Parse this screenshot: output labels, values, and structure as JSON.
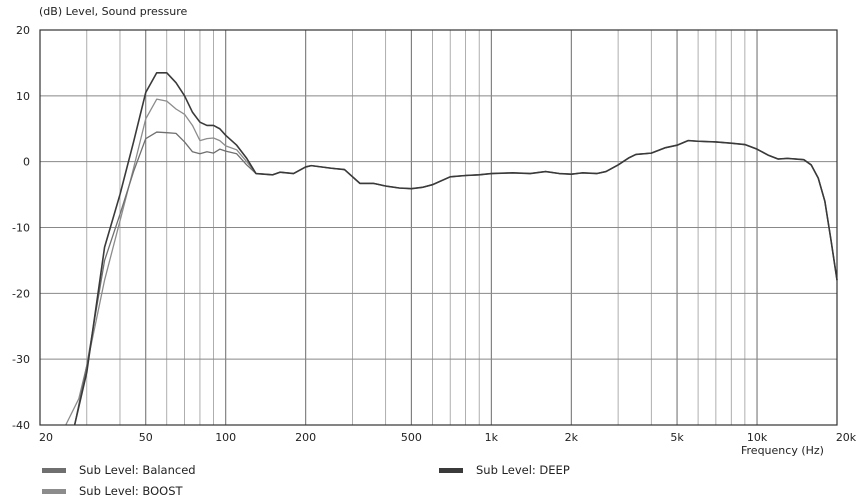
{
  "chart_data": {
    "type": "line",
    "title": "(dB)  Level, Sound pressure",
    "xlabel": "Frequency  (Hz)",
    "ylabel": "",
    "x_scale": "log",
    "xlim": [
      20,
      20000
    ],
    "ylim": [
      -40,
      20
    ],
    "grid": true,
    "x_ticks": [
      {
        "value": 20,
        "label": "20"
      },
      {
        "value": 50,
        "label": "50"
      },
      {
        "value": 100,
        "label": "100"
      },
      {
        "value": 200,
        "label": "200"
      },
      {
        "value": 500,
        "label": "500"
      },
      {
        "value": 1000,
        "label": "1k"
      },
      {
        "value": 2000,
        "label": "2k"
      },
      {
        "value": 5000,
        "label": "5k"
      },
      {
        "value": 10000,
        "label": "10k"
      },
      {
        "value": 20000,
        "label": "20k"
      }
    ],
    "y_ticks": [
      {
        "value": 20,
        "label": "20"
      },
      {
        "value": 10,
        "label": "10"
      },
      {
        "value": 0,
        "label": "0"
      },
      {
        "value": -10,
        "label": "-10"
      },
      {
        "value": -20,
        "label": "-20"
      },
      {
        "value": -30,
        "label": "-30"
      },
      {
        "value": -40,
        "label": "-40"
      }
    ],
    "series": [
      {
        "name": "Sub Level: Balanced",
        "color": "#6f6f6f",
        "points": [
          [
            27,
            -40
          ],
          [
            30,
            -31
          ],
          [
            35,
            -15
          ],
          [
            40,
            -8
          ],
          [
            45,
            -1.5
          ],
          [
            50,
            3.5
          ],
          [
            55,
            4.5
          ],
          [
            60,
            4.4
          ],
          [
            65,
            4.3
          ],
          [
            70,
            3.0
          ],
          [
            75,
            1.5
          ],
          [
            80,
            1.2
          ],
          [
            85,
            1.5
          ],
          [
            90,
            1.3
          ],
          [
            95,
            1.9
          ],
          [
            100,
            1.6
          ],
          [
            110,
            1.2
          ],
          [
            120,
            -0.5
          ],
          [
            130,
            -1.8
          ],
          [
            150,
            -2.0
          ],
          [
            160,
            -1.6
          ],
          [
            180,
            -1.8
          ],
          [
            200,
            -0.8
          ],
          [
            210,
            -0.6
          ],
          [
            250,
            -1.0
          ],
          [
            280,
            -1.2
          ],
          [
            320,
            -3.3
          ],
          [
            360,
            -3.3
          ],
          [
            400,
            -3.7
          ],
          [
            450,
            -4.0
          ],
          [
            500,
            -4.1
          ],
          [
            550,
            -3.9
          ],
          [
            600,
            -3.5
          ],
          [
            700,
            -2.3
          ],
          [
            800,
            -2.1
          ],
          [
            900,
            -2.0
          ],
          [
            1000,
            -1.8
          ],
          [
            1200,
            -1.7
          ],
          [
            1400,
            -1.8
          ],
          [
            1600,
            -1.5
          ],
          [
            1800,
            -1.8
          ],
          [
            2000,
            -1.9
          ],
          [
            2200,
            -1.7
          ],
          [
            2500,
            -1.8
          ],
          [
            2700,
            -1.5
          ],
          [
            3000,
            -0.5
          ],
          [
            3300,
            0.6
          ],
          [
            3500,
            1.1
          ],
          [
            4000,
            1.3
          ],
          [
            4500,
            2.1
          ],
          [
            5000,
            2.5
          ],
          [
            5500,
            3.2
          ],
          [
            6000,
            3.1
          ],
          [
            7000,
            3.0
          ],
          [
            8000,
            2.8
          ],
          [
            9000,
            2.6
          ],
          [
            10000,
            1.9
          ],
          [
            11000,
            1.0
          ],
          [
            12000,
            0.4
          ],
          [
            13000,
            0.5
          ],
          [
            14000,
            0.4
          ],
          [
            15000,
            0.3
          ],
          [
            16000,
            -0.5
          ],
          [
            17000,
            -2.5
          ],
          [
            18000,
            -6
          ],
          [
            19000,
            -12
          ],
          [
            20000,
            -18
          ]
        ]
      },
      {
        "name": "Sub Level: BOOST",
        "color": "#8c8c8c",
        "points": [
          [
            25,
            -40
          ],
          [
            28,
            -36
          ],
          [
            30,
            -31
          ],
          [
            35,
            -18
          ],
          [
            40,
            -9
          ],
          [
            45,
            -1
          ],
          [
            50,
            6.5
          ],
          [
            55,
            9.5
          ],
          [
            60,
            9.2
          ],
          [
            65,
            8.0
          ],
          [
            70,
            7.2
          ],
          [
            75,
            5.5
          ],
          [
            80,
            3.2
          ],
          [
            85,
            3.5
          ],
          [
            90,
            3.6
          ],
          [
            95,
            3.2
          ],
          [
            100,
            2.4
          ],
          [
            110,
            1.8
          ],
          [
            120,
            0.0
          ],
          [
            130,
            -1.8
          ],
          [
            150,
            -2.0
          ],
          [
            160,
            -1.6
          ],
          [
            180,
            -1.8
          ],
          [
            200,
            -0.8
          ],
          [
            210,
            -0.6
          ],
          [
            250,
            -1.0
          ],
          [
            280,
            -1.2
          ],
          [
            320,
            -3.3
          ],
          [
            360,
            -3.3
          ],
          [
            400,
            -3.7
          ],
          [
            450,
            -4.0
          ],
          [
            500,
            -4.1
          ],
          [
            550,
            -3.9
          ],
          [
            600,
            -3.5
          ],
          [
            700,
            -2.3
          ],
          [
            800,
            -2.1
          ],
          [
            900,
            -2.0
          ],
          [
            1000,
            -1.8
          ],
          [
            1200,
            -1.7
          ],
          [
            1400,
            -1.8
          ],
          [
            1600,
            -1.5
          ],
          [
            1800,
            -1.8
          ],
          [
            2000,
            -1.9
          ],
          [
            2200,
            -1.7
          ],
          [
            2500,
            -1.8
          ],
          [
            2700,
            -1.5
          ],
          [
            3000,
            -0.5
          ],
          [
            3300,
            0.6
          ],
          [
            3500,
            1.1
          ],
          [
            4000,
            1.3
          ],
          [
            4500,
            2.1
          ],
          [
            5000,
            2.5
          ],
          [
            5500,
            3.2
          ],
          [
            6000,
            3.1
          ],
          [
            7000,
            3.0
          ],
          [
            8000,
            2.8
          ],
          [
            9000,
            2.6
          ],
          [
            10000,
            1.9
          ],
          [
            11000,
            1.0
          ],
          [
            12000,
            0.4
          ],
          [
            13000,
            0.5
          ],
          [
            14000,
            0.4
          ],
          [
            15000,
            0.3
          ],
          [
            16000,
            -0.5
          ],
          [
            17000,
            -2.5
          ],
          [
            18000,
            -6
          ],
          [
            19000,
            -12
          ],
          [
            20000,
            -18
          ]
        ]
      },
      {
        "name": "Sub Level: DEEP",
        "color": "#3a3a3a",
        "points": [
          [
            27,
            -40
          ],
          [
            30,
            -32
          ],
          [
            35,
            -13
          ],
          [
            40,
            -5
          ],
          [
            45,
            3
          ],
          [
            50,
            10.5
          ],
          [
            55,
            13.5
          ],
          [
            60,
            13.5
          ],
          [
            65,
            12.0
          ],
          [
            70,
            10.0
          ],
          [
            75,
            7.5
          ],
          [
            80,
            6.0
          ],
          [
            85,
            5.5
          ],
          [
            90,
            5.5
          ],
          [
            95,
            5.0
          ],
          [
            100,
            4.0
          ],
          [
            110,
            2.5
          ],
          [
            120,
            0.5
          ],
          [
            130,
            -1.8
          ],
          [
            150,
            -2.0
          ],
          [
            160,
            -1.6
          ],
          [
            180,
            -1.8
          ],
          [
            200,
            -0.8
          ],
          [
            210,
            -0.6
          ],
          [
            250,
            -1.0
          ],
          [
            280,
            -1.2
          ],
          [
            320,
            -3.3
          ],
          [
            360,
            -3.3
          ],
          [
            400,
            -3.7
          ],
          [
            450,
            -4.0
          ],
          [
            500,
            -4.1
          ],
          [
            550,
            -3.9
          ],
          [
            600,
            -3.5
          ],
          [
            700,
            -2.3
          ],
          [
            800,
            -2.1
          ],
          [
            900,
            -2.0
          ],
          [
            1000,
            -1.8
          ],
          [
            1200,
            -1.7
          ],
          [
            1400,
            -1.8
          ],
          [
            1600,
            -1.5
          ],
          [
            1800,
            -1.8
          ],
          [
            2000,
            -1.9
          ],
          [
            2200,
            -1.7
          ],
          [
            2500,
            -1.8
          ],
          [
            2700,
            -1.5
          ],
          [
            3000,
            -0.5
          ],
          [
            3300,
            0.6
          ],
          [
            3500,
            1.1
          ],
          [
            4000,
            1.3
          ],
          [
            4500,
            2.1
          ],
          [
            5000,
            2.5
          ],
          [
            5500,
            3.2
          ],
          [
            6000,
            3.1
          ],
          [
            7000,
            3.0
          ],
          [
            8000,
            2.8
          ],
          [
            9000,
            2.6
          ],
          [
            10000,
            1.9
          ],
          [
            11000,
            1.0
          ],
          [
            12000,
            0.4
          ],
          [
            13000,
            0.5
          ],
          [
            14000,
            0.4
          ],
          [
            15000,
            0.3
          ],
          [
            16000,
            -0.5
          ],
          [
            17000,
            -2.5
          ],
          [
            18000,
            -6
          ],
          [
            19000,
            -12
          ],
          [
            20000,
            -18
          ]
        ]
      }
    ],
    "legend": [
      {
        "label": "Sub Level: Balanced",
        "color": "#6f6f6f"
      },
      {
        "label": "Sub Level: BOOST",
        "color": "#8c8c8c"
      },
      {
        "label": "Sub Level: DEEP",
        "color": "#3a3a3a"
      }
    ],
    "legend_position": "bottom"
  }
}
